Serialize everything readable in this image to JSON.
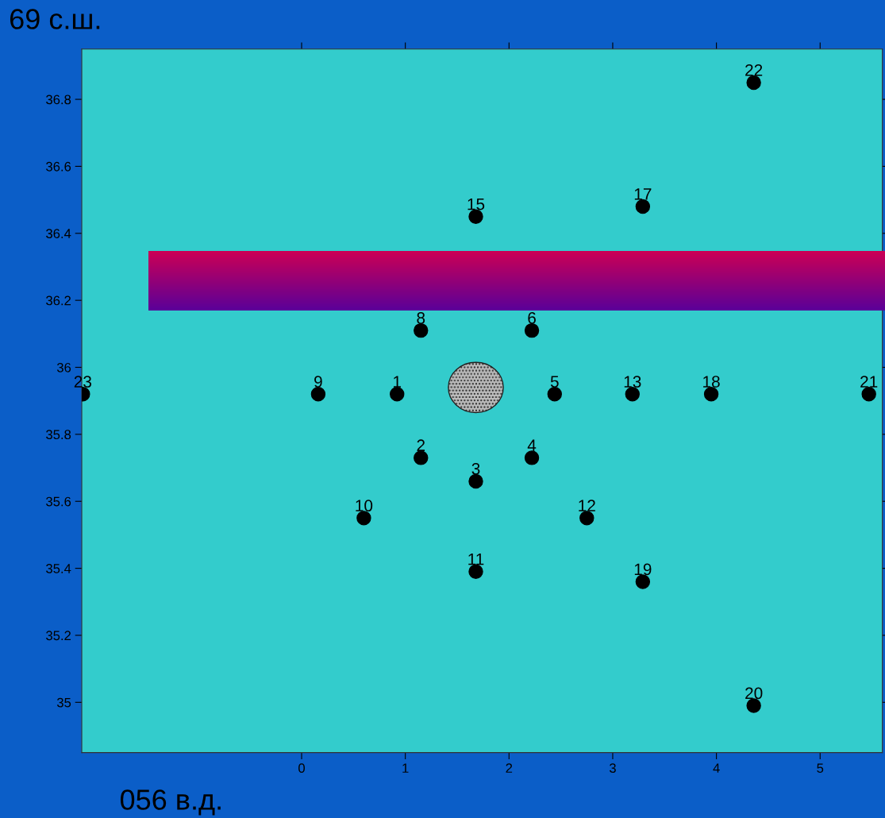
{
  "chart_data": {
    "type": "scatter",
    "x": [
      0.92,
      1.15,
      1.68,
      2.22,
      2.44,
      2.22,
      1.15,
      0.16,
      0.6,
      1.68,
      2.75,
      3.19,
      1.68,
      3.29,
      3.95,
      3.29,
      4.36,
      5.47,
      4.36,
      -2.11
    ],
    "values": [
      35.92,
      35.73,
      35.66,
      35.73,
      35.92,
      36.11,
      36.11,
      35.92,
      35.55,
      35.39,
      35.55,
      35.92,
      36.45,
      36.48,
      35.92,
      35.36,
      34.99,
      35.92,
      36.85,
      35.92
    ],
    "color": "#000000",
    "marker": "circle",
    "xlim": [
      -2.12,
      5.6
    ],
    "xticks": [
      0,
      1,
      2,
      3,
      4,
      5
    ],
    "ylim": [
      34.85,
      36.95
    ],
    "yticks": [
      35,
      35.2,
      35.4,
      35.6,
      35.8,
      36,
      36.2,
      36.4,
      36.6,
      36.8
    ],
    "annotations": [
      "69 с.ш.",
      "056 в.д.",
      {
        "text": "1",
        "x": 0.92,
        "y": 35.92
      },
      {
        "text": "2",
        "x": 1.15,
        "y": 35.73
      },
      {
        "text": "3",
        "x": 1.68,
        "y": 35.66
      },
      {
        "text": "4",
        "x": 2.22,
        "y": 35.73
      },
      {
        "text": "5",
        "x": 2.44,
        "y": 35.92
      },
      {
        "text": "6",
        "x": 2.22,
        "y": 36.11
      },
      {
        "text": "8",
        "x": 1.15,
        "y": 36.11
      },
      {
        "text": "9",
        "x": 0.16,
        "y": 35.92
      },
      {
        "text": "10",
        "x": 0.6,
        "y": 35.55
      },
      {
        "text": "11",
        "x": 1.68,
        "y": 35.39
      },
      {
        "text": "12",
        "x": 2.75,
        "y": 35.55
      },
      {
        "text": "13",
        "x": 3.19,
        "y": 35.92
      },
      {
        "text": "15",
        "x": 1.68,
        "y": 36.45
      },
      {
        "text": "17",
        "x": 3.29,
        "y": 36.48
      },
      {
        "text": "18",
        "x": 3.95,
        "y": 35.92
      },
      {
        "text": "19",
        "x": 3.29,
        "y": 35.36
      },
      {
        "text": "20",
        "x": 4.36,
        "y": 34.99
      },
      {
        "text": "21",
        "x": 5.47,
        "y": 35.92
      },
      {
        "text": "22",
        "x": 4.36,
        "y": 36.85
      },
      {
        "text": "23",
        "x": -2.11,
        "y": 35.92
      }
    ]
  }
}
